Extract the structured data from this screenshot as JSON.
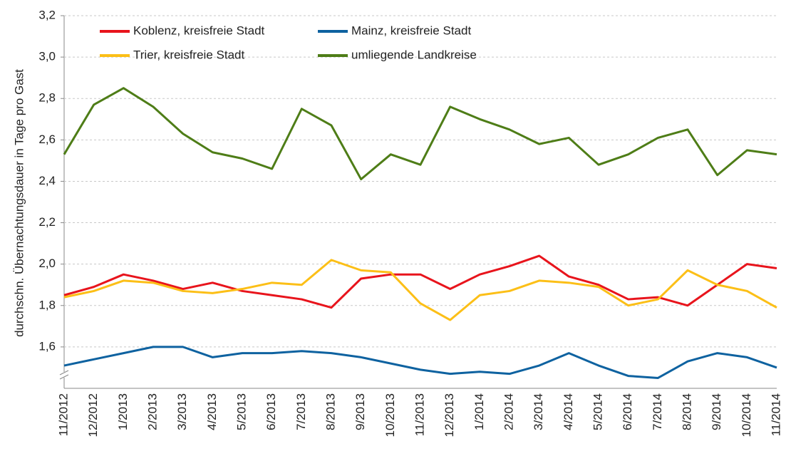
{
  "chart_data": {
    "type": "line",
    "y_label": "durchschn. Übernachtungsdauer in Tage pro Gast",
    "categories": [
      "11/2012",
      "12/2012",
      "1/2013",
      "2/2013",
      "3/2013",
      "4/2013",
      "5/2013",
      "6/2013",
      "7/2013",
      "8/2013",
      "9/2013",
      "10/2013",
      "11/2013",
      "12/2013",
      "1/2014",
      "2/2014",
      "3/2014",
      "4/2014",
      "5/2014",
      "6/2014",
      "7/2014",
      "8/2014",
      "9/2014",
      "10/2014",
      "11/2014"
    ],
    "series": [
      {
        "name": "Koblenz, kreisfreie Stadt",
        "color": "#e8141c",
        "values": [
          1.85,
          1.89,
          1.95,
          1.92,
          1.88,
          1.91,
          1.87,
          1.85,
          1.83,
          1.79,
          1.93,
          1.95,
          1.95,
          1.88,
          1.95,
          1.99,
          2.04,
          1.94,
          1.9,
          1.83,
          1.84,
          1.8,
          1.9,
          2.0,
          1.98
        ]
      },
      {
        "name": "Mainz, kreisfreie Stadt",
        "color": "#0e62a0",
        "values": [
          1.51,
          1.54,
          1.57,
          1.6,
          1.6,
          1.55,
          1.57,
          1.57,
          1.58,
          1.57,
          1.55,
          1.52,
          1.49,
          1.47,
          1.48,
          1.47,
          1.51,
          1.57,
          1.51,
          1.46,
          1.45,
          1.53,
          1.57,
          1.55,
          1.5
        ]
      },
      {
        "name": "Trier, kreisfreie Stadt",
        "color": "#fcbf17",
        "values": [
          1.84,
          1.87,
          1.92,
          1.91,
          1.87,
          1.86,
          1.88,
          1.91,
          1.9,
          2.02,
          1.97,
          1.96,
          1.81,
          1.73,
          1.85,
          1.87,
          1.92,
          1.91,
          1.89,
          1.8,
          1.83,
          1.97,
          1.9,
          1.87,
          1.79
        ]
      },
      {
        "name": "umliegende Landkreise",
        "color": "#4e7d17",
        "values": [
          2.53,
          2.77,
          2.85,
          2.76,
          2.63,
          2.54,
          2.51,
          2.46,
          2.75,
          2.67,
          2.41,
          2.53,
          2.48,
          2.76,
          2.7,
          2.65,
          2.58,
          2.61,
          2.48,
          2.53,
          2.61,
          2.65,
          2.43,
          2.55,
          2.53
        ]
      }
    ],
    "ylim": [
      1.4,
      3.2
    ],
    "yticks": [
      {
        "value": 1.6,
        "label": "1,6"
      },
      {
        "value": 1.8,
        "label": "1,8"
      },
      {
        "value": 2.0,
        "label": "2,0"
      },
      {
        "value": 2.2,
        "label": "2,2"
      },
      {
        "value": 2.4,
        "label": "2,4"
      },
      {
        "value": 2.6,
        "label": "2,6"
      },
      {
        "value": 2.8,
        "label": "2,8"
      },
      {
        "value": 3.0,
        "label": "3,0"
      },
      {
        "value": 3.2,
        "label": "3,2"
      }
    ],
    "grid": true
  }
}
